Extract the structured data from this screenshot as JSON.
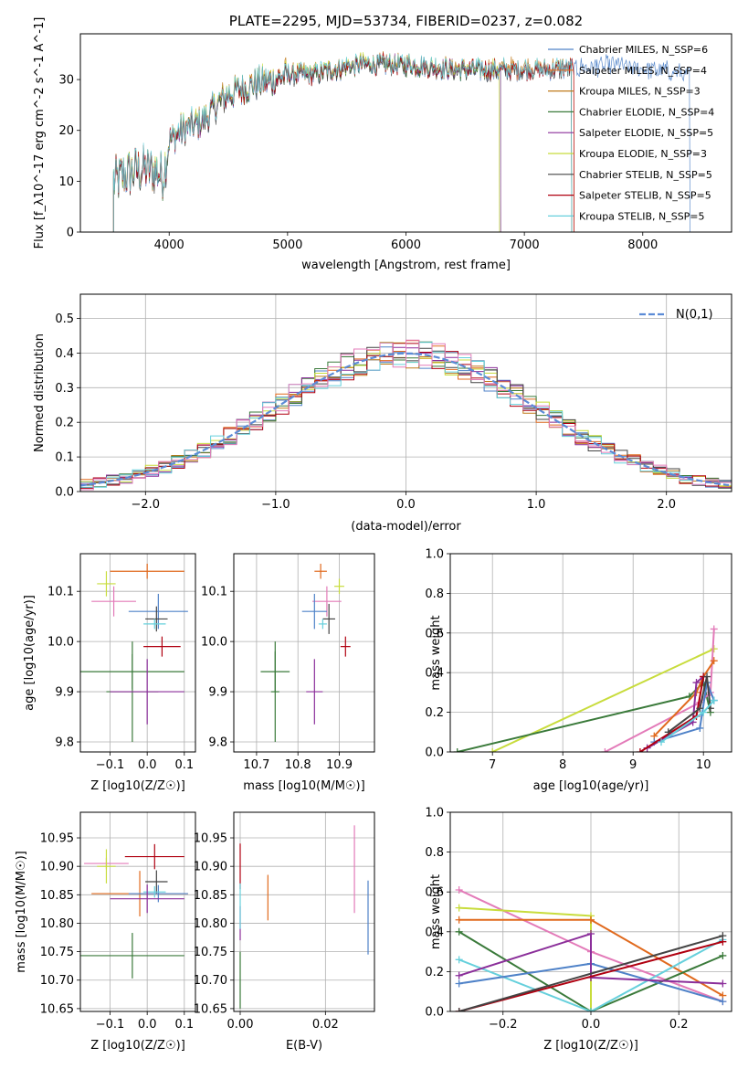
{
  "chart_data": [
    {
      "id": "spectrum",
      "type": "line",
      "title": "PLATE=2295, MJD=53734, FIBERID=0237, z=0.082",
      "xlabel": "wavelength [Angstrom, rest frame]",
      "ylabel": "Flux [f_λ10^-17 erg cm^-2 s^-1 A^-1]",
      "xlim": [
        3250,
        8750
      ],
      "ylim": [
        0,
        39
      ],
      "xticks": [
        4000,
        5000,
        6000,
        7000,
        8000
      ],
      "yticks": [
        0,
        10,
        20,
        30
      ],
      "legend_position": "top-right",
      "profile_x": [
        3530,
        3600,
        3700,
        3800,
        3900,
        3950,
        4000,
        4100,
        4200,
        4300,
        4400,
        4500,
        4700,
        4900,
        5000,
        5200,
        5400,
        5600,
        5800,
        6000,
        6200,
        6400,
        6600,
        6800,
        7000,
        7200,
        7400,
        7600,
        7800,
        8000,
        8200,
        8400
      ],
      "profile_y": [
        10,
        11,
        12,
        12.5,
        12,
        11,
        18,
        20,
        21,
        22,
        25,
        27,
        29,
        30,
        31,
        31,
        32,
        33,
        33,
        33,
        32.5,
        32,
        32,
        32,
        32,
        32,
        32.5,
        33,
        33,
        32.5,
        32,
        31
      ],
      "series": [
        {
          "name": "Chabrier MILES, N_SSP=6",
          "color": "#4f82c8",
          "end": 8400
        },
        {
          "name": "Salpeter MILES, N_SSP=4",
          "color": "#e06a1e",
          "end": 7420
        },
        {
          "name": "Kroupa MILES, N_SSP=3",
          "color": "#c07a1a",
          "end": 7400
        },
        {
          "name": "Chabrier ELODIE, N_SSP=4",
          "color": "#3a7a3a",
          "end": 6800
        },
        {
          "name": "Salpeter ELODIE, N_SSP=5",
          "color": "#8b2f9a",
          "end": 6800
        },
        {
          "name": "Kroupa ELODIE, N_SSP=3",
          "color": "#c8dc3c",
          "end": 6790
        },
        {
          "name": "Chabrier STELIB, N_SSP=5",
          "color": "#444444",
          "end": 7400
        },
        {
          "name": "Salpeter STELIB, N_SSP=5",
          "color": "#b00010",
          "end": 7420
        },
        {
          "name": "Kroupa STELIB, N_SSP=5",
          "color": "#66d0dc",
          "end": 7400
        }
      ]
    },
    {
      "id": "residuals",
      "type": "histogram",
      "xlabel": "(data-model)/error",
      "ylabel": "Normed distribution",
      "xlim": [
        -2.5,
        2.5
      ],
      "ylim": [
        0,
        0.57
      ],
      "xticks": [
        -2,
        -1,
        0,
        1,
        2
      ],
      "yticks": [
        0.0,
        0.1,
        0.2,
        0.3,
        0.4,
        0.5
      ],
      "grid": true,
      "legend_position": "top-right",
      "legend": "N(0,1)",
      "gaussian_color": "#5b8bd6",
      "bin_width": 0.1,
      "series_colors": [
        "#4f82c8",
        "#e06a1e",
        "#c07a1a",
        "#3a7a3a",
        "#8b2f9a",
        "#c8dc3c",
        "#444444",
        "#b00010",
        "#66d0dc",
        "#e37bb9"
      ]
    },
    {
      "id": "age_vs_Z",
      "type": "errorbar",
      "xlabel": "Z [log10(Z/Z☉)]",
      "ylabel": "age  [log10(age/yr)]",
      "xlim": [
        -0.18,
        0.13
      ],
      "ylim": [
        9.78,
        10.175
      ],
      "xticks": [
        -0.1,
        0.0,
        0.1
      ],
      "yticks": [
        9.8,
        9.9,
        10.0,
        10.1
      ],
      "grid": true,
      "points": [
        {
          "x": 0.0,
          "y": 10.14,
          "dx": 0.1,
          "dy": 0.015,
          "color": "#e06a1e"
        },
        {
          "x": -0.11,
          "y": 10.115,
          "dx": 0.025,
          "dy": 0.025,
          "color": "#c8dc3c"
        },
        {
          "x": -0.09,
          "y": 10.08,
          "dx": 0.06,
          "dy": 0.03,
          "color": "#e37bb9"
        },
        {
          "x": 0.03,
          "y": 10.06,
          "dx": 0.08,
          "dy": 0.035,
          "color": "#4f82c8"
        },
        {
          "x": 0.025,
          "y": 10.045,
          "dx": 0.03,
          "dy": 0.025,
          "color": "#444444"
        },
        {
          "x": 0.02,
          "y": 10.035,
          "dx": 0.03,
          "dy": 0.01,
          "color": "#66d0dc"
        },
        {
          "x": 0.04,
          "y": 9.99,
          "dx": 0.05,
          "dy": 0.02,
          "color": "#b00010"
        },
        {
          "x": -0.04,
          "y": 9.94,
          "dx": 0.14,
          "dy": 0.035,
          "color": "#3a7a3a"
        },
        {
          "x": -0.04,
          "y": 9.9,
          "dx": 0.07,
          "dy": 0.1,
          "color": "#3a7a3a"
        },
        {
          "x": 0.0,
          "y": 9.9,
          "dx": 0.1,
          "dy": 0.065,
          "color": "#8b2f9a"
        }
      ]
    },
    {
      "id": "age_vs_mass",
      "type": "errorbar",
      "xlabel": "mass [log10(M/M☉)]",
      "ylabel": "",
      "xlim": [
        10.645,
        10.985
      ],
      "ylim": [
        9.78,
        10.175
      ],
      "xticks": [
        10.7,
        10.8,
        10.9
      ],
      "yticks": [
        9.8,
        9.9,
        10.0,
        10.1
      ],
      "grid": true,
      "points": [
        {
          "x": 10.855,
          "y": 10.14,
          "dx": 0.015,
          "dy": 0.015,
          "color": "#e06a1e"
        },
        {
          "x": 10.9,
          "y": 10.11,
          "dx": 0.012,
          "dy": 0.015,
          "color": "#c8dc3c"
        },
        {
          "x": 10.87,
          "y": 10.08,
          "dx": 0.035,
          "dy": 0.03,
          "color": "#e37bb9"
        },
        {
          "x": 10.84,
          "y": 10.06,
          "dx": 0.03,
          "dy": 0.035,
          "color": "#4f82c8"
        },
        {
          "x": 10.875,
          "y": 10.045,
          "dx": 0.015,
          "dy": 0.03,
          "color": "#444444"
        },
        {
          "x": 10.86,
          "y": 10.035,
          "dx": 0.01,
          "dy": 0.01,
          "color": "#66d0dc"
        },
        {
          "x": 10.915,
          "y": 9.99,
          "dx": 0.012,
          "dy": 0.02,
          "color": "#b00010"
        },
        {
          "x": 10.745,
          "y": 9.94,
          "dx": 0.035,
          "dy": 0.04,
          "color": "#3a7a3a"
        },
        {
          "x": 10.745,
          "y": 9.9,
          "dx": 0.01,
          "dy": 0.1,
          "color": "#3a7a3a"
        },
        {
          "x": 10.84,
          "y": 9.9,
          "dx": 0.02,
          "dy": 0.065,
          "color": "#8b2f9a"
        }
      ]
    },
    {
      "id": "weights_vs_age",
      "type": "line",
      "xlabel": "age  [log10(age/yr)]",
      "ylabel": "mass weight",
      "xlim": [
        6.4,
        10.4
      ],
      "ylim": [
        0,
        1.0
      ],
      "xticks": [
        7,
        8,
        9,
        10
      ],
      "yticks": [
        0.0,
        0.2,
        0.4,
        0.6,
        0.8,
        1.0
      ],
      "grid": true,
      "series": [
        {
          "color": "#c8dc3c",
          "x": [
            7.0,
            10.15
          ],
          "y": [
            0.0,
            0.52
          ]
        },
        {
          "color": "#3a7a3a",
          "x": [
            6.5,
            9.8,
            10.0,
            10.1
          ],
          "y": [
            0.0,
            0.28,
            0.35,
            0.2
          ]
        },
        {
          "color": "#e37bb9",
          "x": [
            8.6,
            9.95,
            10.1,
            10.15
          ],
          "y": [
            0.0,
            0.25,
            0.3,
            0.62
          ]
        },
        {
          "color": "#e06a1e",
          "x": [
            9.3,
            9.9,
            10.0,
            10.15
          ],
          "y": [
            0.08,
            0.3,
            0.38,
            0.46
          ]
        },
        {
          "color": "#4f82c8",
          "x": [
            9.3,
            9.95,
            10.05,
            10.15
          ],
          "y": [
            0.05,
            0.12,
            0.35,
            0.26
          ]
        },
        {
          "color": "#8b2f9a",
          "x": [
            9.2,
            9.85,
            9.9,
            10.0
          ],
          "y": [
            0.02,
            0.15,
            0.35,
            0.38
          ]
        },
        {
          "color": "#b00010",
          "x": [
            9.1,
            9.9,
            10.0
          ],
          "y": [
            0.0,
            0.18,
            0.38
          ]
        },
        {
          "color": "#444444",
          "x": [
            9.5,
            9.95,
            10.05,
            10.1
          ],
          "y": [
            0.1,
            0.22,
            0.38,
            0.22
          ]
        },
        {
          "color": "#66d0dc",
          "x": [
            9.4,
            10.0,
            10.15
          ],
          "y": [
            0.05,
            0.2,
            0.26
          ]
        }
      ]
    },
    {
      "id": "mass_vs_Z",
      "type": "errorbar",
      "xlabel": "Z [log10(Z/Z☉)]",
      "ylabel": "mass [log10(M/M☉)]",
      "xlim": [
        -0.18,
        0.13
      ],
      "ylim": [
        10.645,
        10.995
      ],
      "xticks": [
        -0.1,
        0.0,
        0.1
      ],
      "yticks": [
        10.65,
        10.7,
        10.75,
        10.8,
        10.85,
        10.9,
        10.95
      ],
      "grid": true,
      "points": [
        {
          "x": 0.02,
          "y": 10.917,
          "dx": 0.08,
          "dy": 0.022,
          "color": "#b00010"
        },
        {
          "x": -0.11,
          "y": 10.905,
          "dx": 0.06,
          "dy": 0.01,
          "color": "#e37bb9"
        },
        {
          "x": -0.11,
          "y": 10.9,
          "dx": 0.025,
          "dy": 0.03,
          "color": "#c8dc3c"
        },
        {
          "x": 0.025,
          "y": 10.873,
          "dx": 0.03,
          "dy": 0.02,
          "color": "#444444"
        },
        {
          "x": -0.02,
          "y": 10.852,
          "dx": 0.13,
          "dy": 0.04,
          "color": "#e06a1e"
        },
        {
          "x": 0.03,
          "y": 10.852,
          "dx": 0.08,
          "dy": 0.015,
          "color": "#4f82c8"
        },
        {
          "x": 0.02,
          "y": 10.855,
          "dx": 0.03,
          "dy": 0.01,
          "color": "#66d0dc"
        },
        {
          "x": 0.0,
          "y": 10.843,
          "dx": 0.1,
          "dy": 0.025,
          "color": "#8b2f9a"
        },
        {
          "x": -0.04,
          "y": 10.743,
          "dx": 0.14,
          "dy": 0.04,
          "color": "#3a7a3a"
        }
      ]
    },
    {
      "id": "mass_vs_EBV",
      "type": "errorbar",
      "xlabel": "E(B-V)",
      "ylabel": "",
      "xlim": [
        -0.0015,
        0.0315
      ],
      "ylim": [
        10.645,
        10.995
      ],
      "xticks": [
        0.0,
        0.02
      ],
      "yticks": [
        10.65,
        10.7,
        10.75,
        10.8,
        10.85,
        10.9,
        10.95
      ],
      "grid": true,
      "points": [
        {
          "x": 0.0,
          "y": 10.9,
          "dx": 0.0,
          "dy": 0.04,
          "color": "#b00010"
        },
        {
          "x": 0.0,
          "y": 10.8,
          "dx": 0.0,
          "dy": 0.03,
          "color": "#8b2f9a"
        },
        {
          "x": 0.0,
          "y": 10.83,
          "dx": 0.0,
          "dy": 0.04,
          "color": "#66d0dc"
        },
        {
          "x": 0.0,
          "y": 10.7,
          "dx": 0.0,
          "dy": 0.05,
          "color": "#3a7a3a"
        },
        {
          "x": 0.0065,
          "y": 10.845,
          "dx": 0.0,
          "dy": 0.04,
          "color": "#e06a1e"
        },
        {
          "x": 0.0268,
          "y": 10.895,
          "dx": 0.0,
          "dy": 0.077,
          "color": "#e37bb9"
        },
        {
          "x": 0.03,
          "y": 10.81,
          "dx": 0.0,
          "dy": 0.065,
          "color": "#4f82c8"
        }
      ]
    },
    {
      "id": "weights_vs_Z",
      "type": "line",
      "xlabel": "Z [log10(Z/Z☉)]",
      "ylabel": "mass weight",
      "xlim": [
        -0.32,
        0.32
      ],
      "ylim": [
        0,
        1.0
      ],
      "xticks": [
        -0.2,
        0.0,
        0.2
      ],
      "yticks": [
        0.0,
        0.2,
        0.4,
        0.6,
        0.8,
        1.0
      ],
      "grid": true,
      "series": [
        {
          "color": "#e37bb9",
          "x": [
            -0.3,
            0.0,
            0.3
          ],
          "y": [
            0.61,
            0.3,
            0.05
          ]
        },
        {
          "color": "#c8dc3c",
          "x": [
            -0.3,
            0.0,
            0.0
          ],
          "y": [
            0.52,
            0.48,
            0.0
          ]
        },
        {
          "color": "#e06a1e",
          "x": [
            -0.3,
            0.0,
            0.3
          ],
          "y": [
            0.46,
            0.46,
            0.08
          ]
        },
        {
          "color": "#3a7a3a",
          "x": [
            -0.3,
            0.0,
            0.3
          ],
          "y": [
            0.4,
            0.0,
            0.28
          ]
        },
        {
          "color": "#66d0dc",
          "x": [
            -0.3,
            0.0,
            0.3
          ],
          "y": [
            0.26,
            0.0,
            0.36
          ]
        },
        {
          "color": "#4f82c8",
          "x": [
            -0.3,
            0.0,
            0.3
          ],
          "y": [
            0.14,
            0.24,
            0.05
          ]
        },
        {
          "color": "#8b2f9a",
          "x": [
            -0.3,
            0.0,
            0.0,
            0.3
          ],
          "y": [
            0.18,
            0.39,
            0.17,
            0.14
          ]
        },
        {
          "color": "#b00010",
          "x": [
            -0.3,
            -0.3,
            0.3
          ],
          "y": [
            0.0,
            0.0,
            0.35
          ]
        },
        {
          "color": "#444444",
          "x": [
            -0.3,
            0.3
          ],
          "y": [
            0.0,
            0.38
          ]
        }
      ]
    }
  ]
}
